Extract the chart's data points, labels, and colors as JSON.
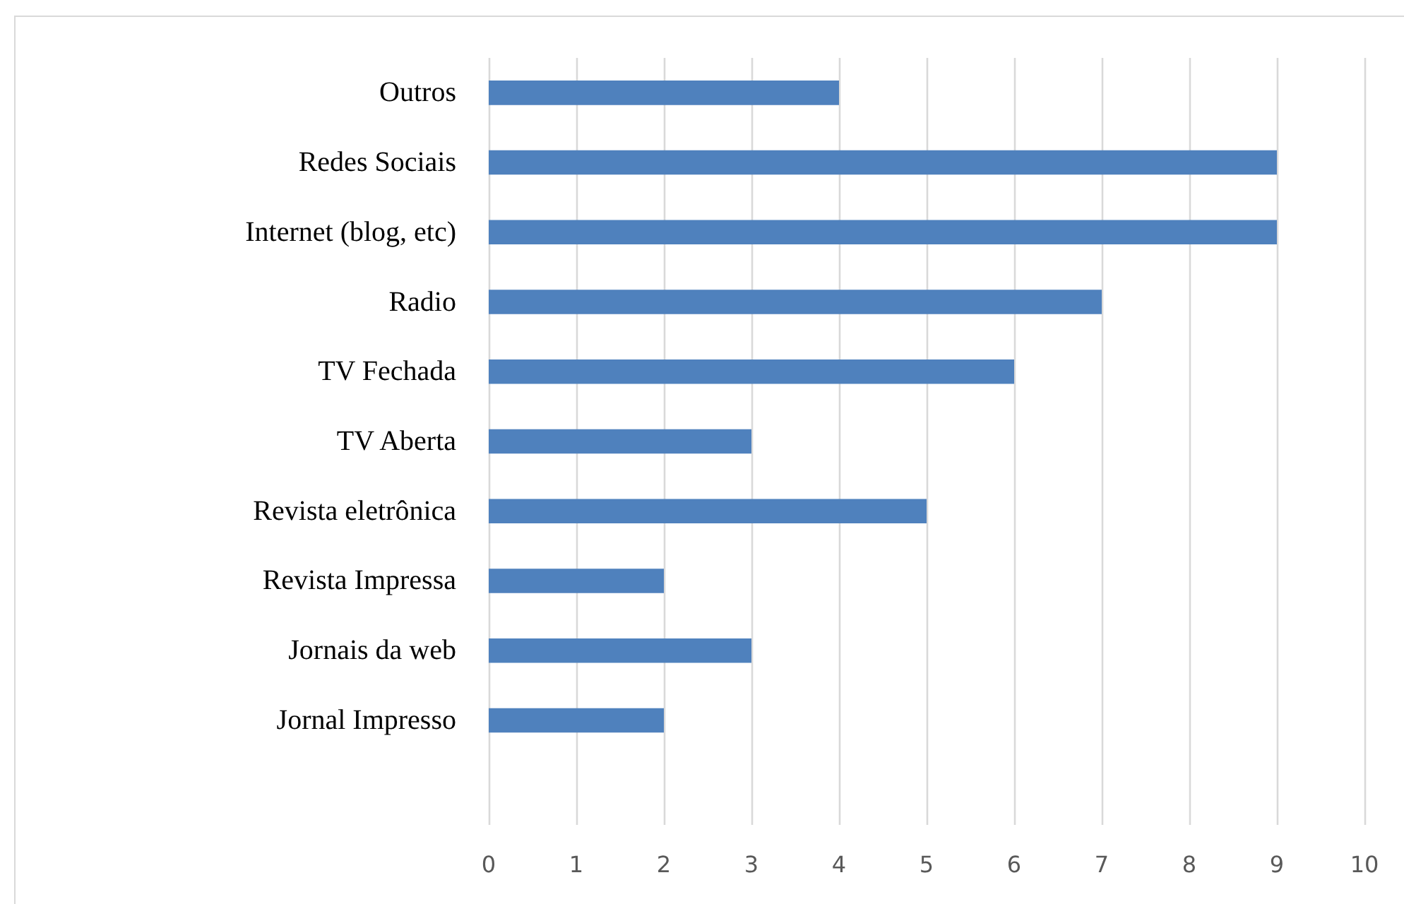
{
  "chart_data": {
    "type": "bar",
    "orientation": "horizontal",
    "categories": [
      "Outros",
      "Redes Sociais",
      "Internet (blog, etc)",
      "Radio",
      "TV Fechada",
      "TV Aberta",
      "Revista eletrônica",
      "Revista Impressa",
      "Jornais da web",
      "Jornal Impresso",
      null
    ],
    "values": [
      4,
      9,
      9,
      7,
      6,
      3,
      5,
      2,
      3,
      2,
      null
    ],
    "color": "#4f81bd",
    "xlim": [
      0,
      10
    ],
    "xticks": [
      0,
      1,
      2,
      3,
      4,
      5,
      6,
      7,
      8,
      9,
      10
    ],
    "grid": "x"
  }
}
